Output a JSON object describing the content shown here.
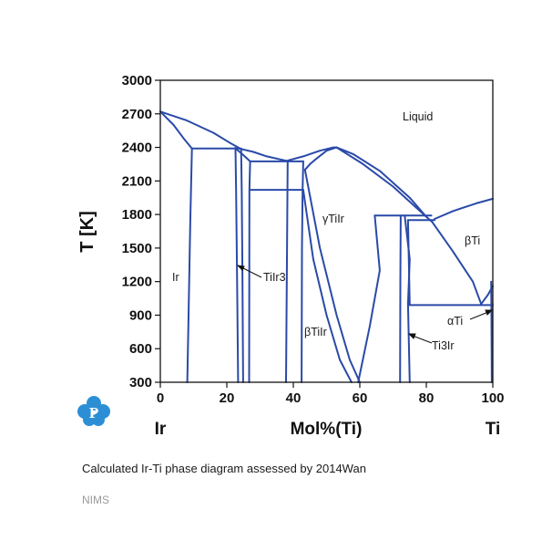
{
  "chart_data": {
    "type": "line",
    "title": "",
    "xlabel": "Mol%(Ti)",
    "ylabel": "T [K]",
    "xlim": [
      0,
      100
    ],
    "ylim": [
      300,
      3000
    ],
    "x_ticks": [
      "0",
      "20",
      "40",
      "60",
      "80",
      "100"
    ],
    "y_ticks": [
      "300",
      "600",
      "900",
      "1200",
      "1500",
      "1800",
      "2100",
      "2400",
      "2700",
      "3000"
    ],
    "x_end_labels": {
      "left": "Ir",
      "right": "Ti"
    },
    "grid": false,
    "region_labels": [
      "Liquid",
      "γTiIr",
      "βTi",
      "Ir",
      "TiIr3",
      "βTiIr",
      "αTi",
      "Ti3Ir"
    ],
    "series": [
      {
        "x": [
          0,
          8,
          16,
          21,
          24
        ],
        "y": [
          2720,
          2640,
          2530,
          2440,
          2390
        ]
      },
      {
        "x": [
          0,
          4,
          7,
          9.5
        ],
        "y": [
          2720,
          2600,
          2480,
          2390
        ]
      },
      {
        "x": [
          9.5,
          23.7
        ],
        "y": [
          2390,
          2390
        ]
      },
      {
        "x": [
          23.7,
          28,
          32,
          38
        ],
        "y": [
          2390,
          2360,
          2320,
          2280
        ]
      },
      {
        "x": [
          22.5,
          25,
          27
        ],
        "y": [
          2395,
          2330,
          2275
        ]
      },
      {
        "x": [
          27,
          43
        ],
        "y": [
          2275,
          2275
        ]
      },
      {
        "x": [
          38,
          43,
          48,
          52,
          53
        ],
        "y": [
          2280,
          2320,
          2370,
          2400,
          2400
        ]
      },
      {
        "x": [
          53,
          58,
          66,
          75,
          80
        ],
        "y": [
          2400,
          2340,
          2190,
          1950,
          1780
        ]
      },
      {
        "x": [
          53,
          61,
          70,
          77,
          81.5
        ],
        "y": [
          2400,
          2250,
          2050,
          1860,
          1740
        ]
      },
      {
        "x": [
          53,
          50,
          47,
          45,
          43.5
        ],
        "y": [
          2400,
          2370,
          2300,
          2250,
          2200
        ]
      },
      {
        "x": [
          27,
          43
        ],
        "y": [
          2020,
          2020
        ]
      },
      {
        "x": [
          43,
          42.8,
          42.6,
          42.5
        ],
        "y": [
          2275,
          2020,
          1500,
          300
        ]
      },
      {
        "x": [
          38.3,
          38.1,
          37.8
        ],
        "y": [
          2270,
          1500,
          300
        ]
      },
      {
        "x": [
          27,
          26.8,
          26.7
        ],
        "y": [
          2275,
          2020,
          300
        ]
      },
      {
        "x": [
          22.6,
          22.8,
          23.1,
          23.4
        ],
        "y": [
          2395,
          2000,
          1200,
          300
        ]
      },
      {
        "x": [
          24.3,
          24.5,
          24.7,
          24.9
        ],
        "y": [
          2390,
          2000,
          1200,
          300
        ]
      },
      {
        "x": [
          9.5,
          9.0,
          8.5,
          8.1
        ],
        "y": [
          2390,
          1700,
          900,
          300
        ]
      },
      {
        "x": [
          43.5,
          48,
          53,
          57,
          60
        ],
        "y": [
          2200,
          1500,
          900,
          500,
          300
        ]
      },
      {
        "x": [
          43,
          46,
          50,
          54,
          57.5
        ],
        "y": [
          2020,
          1400,
          900,
          500,
          300
        ]
      },
      {
        "x": [
          64.5,
          66,
          63,
          59.5
        ],
        "y": [
          1790,
          1300,
          800,
          300
        ]
      },
      {
        "x": [
          64.5,
          81.5
        ],
        "y": [
          1790,
          1790
        ]
      },
      {
        "x": [
          72.3,
          72.2,
          72.1
        ],
        "y": [
          1790,
          1200,
          300
        ]
      },
      {
        "x": [
          73.5,
          75,
          74.5,
          75
        ],
        "y": [
          1790,
          1400,
          1000,
          300
        ]
      },
      {
        "x": [
          75,
          100
        ],
        "y": [
          990,
          990
        ]
      },
      {
        "x": [
          74.5,
          82.5
        ],
        "y": [
          1750,
          1750
        ]
      },
      {
        "x": [
          74.5,
          75
        ],
        "y": [
          1750,
          990
        ]
      },
      {
        "x": [
          82.5,
          88,
          95,
          100
        ],
        "y": [
          1760,
          1830,
          1900,
          1940
        ]
      },
      {
        "x": [
          81.5,
          88,
          94,
          96.5
        ],
        "y": [
          1745,
          1470,
          1200,
          1000
        ]
      },
      {
        "x": [
          96.5,
          98.5,
          100
        ],
        "y": [
          1000,
          1080,
          1160
        ]
      },
      {
        "x": [
          99.5,
          99.6,
          99.7
        ],
        "y": [
          1200,
          900,
          300
        ]
      }
    ]
  },
  "caption": "Calculated Ir-Ti phase diagram assessed by 2014Wan",
  "source": "NIMS",
  "logo_letter": "P",
  "colors": {
    "line": "#2a4aa8",
    "logo": "#2c8fd6"
  },
  "icons": {
    "logo": "molecule-logo-icon"
  }
}
